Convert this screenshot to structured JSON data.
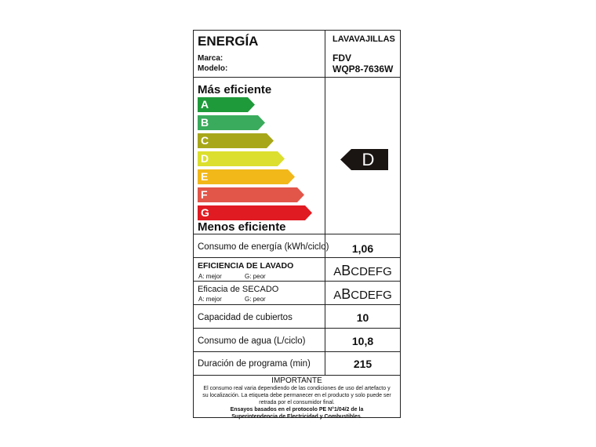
{
  "header": {
    "title": "ENERGÍA",
    "appliance": "LAVAVAJILLAS",
    "brand_label": "Marca:",
    "brand": "FDV",
    "model_label": "Modelo:",
    "model": "WQP8-7636W"
  },
  "scale": {
    "top_label": "Más eficiente",
    "bottom_label": "Menos eficiente",
    "classes": [
      {
        "letter": "A",
        "color": "#1f9a3a"
      },
      {
        "letter": "B",
        "color": "#3aab5c"
      },
      {
        "letter": "C",
        "color": "#a8a71a"
      },
      {
        "letter": "D",
        "color": "#dcdf2e"
      },
      {
        "letter": "E",
        "color": "#f2b81a"
      },
      {
        "letter": "F",
        "color": "#e2564a"
      },
      {
        "letter": "G",
        "color": "#e11b22"
      }
    ],
    "rating": "D"
  },
  "rows": {
    "energy": {
      "label": "Consumo de energía (kWh/ciclo)",
      "value": "1,06"
    },
    "washing": {
      "label": "EFICIENCIA DE LAVADO",
      "best": "A: mejor",
      "worst": "G: peor",
      "pre": "A",
      "selected": "B",
      "post": "CDEFG"
    },
    "drying": {
      "label": "Eficacia de SECADO",
      "best": "A: mejor",
      "worst": "G: peor",
      "pre": "A",
      "selected": "B",
      "post": "CDEFG"
    },
    "capacity": {
      "label": "Capacidad de cubiertos",
      "value": "10"
    },
    "water": {
      "label": "Consumo de agua (L/ciclo)",
      "value": "10,8"
    },
    "duration": {
      "label": "Duración de programa (min)",
      "value": "215"
    }
  },
  "important": {
    "title": "IMPORTANTE",
    "line1": "El consumo  real varia dependiendo de las condiciones de uso del artefacto y",
    "line2": "su localización. La etiqueta debe permanecer en el producto y solo puede ser",
    "line3": "retrada por el consumidor final.",
    "line4": "Ensayos basados en el protocolo PE N°1/04/2 de la",
    "line5": "Superintendencia de Electricidad y Combustibles."
  }
}
